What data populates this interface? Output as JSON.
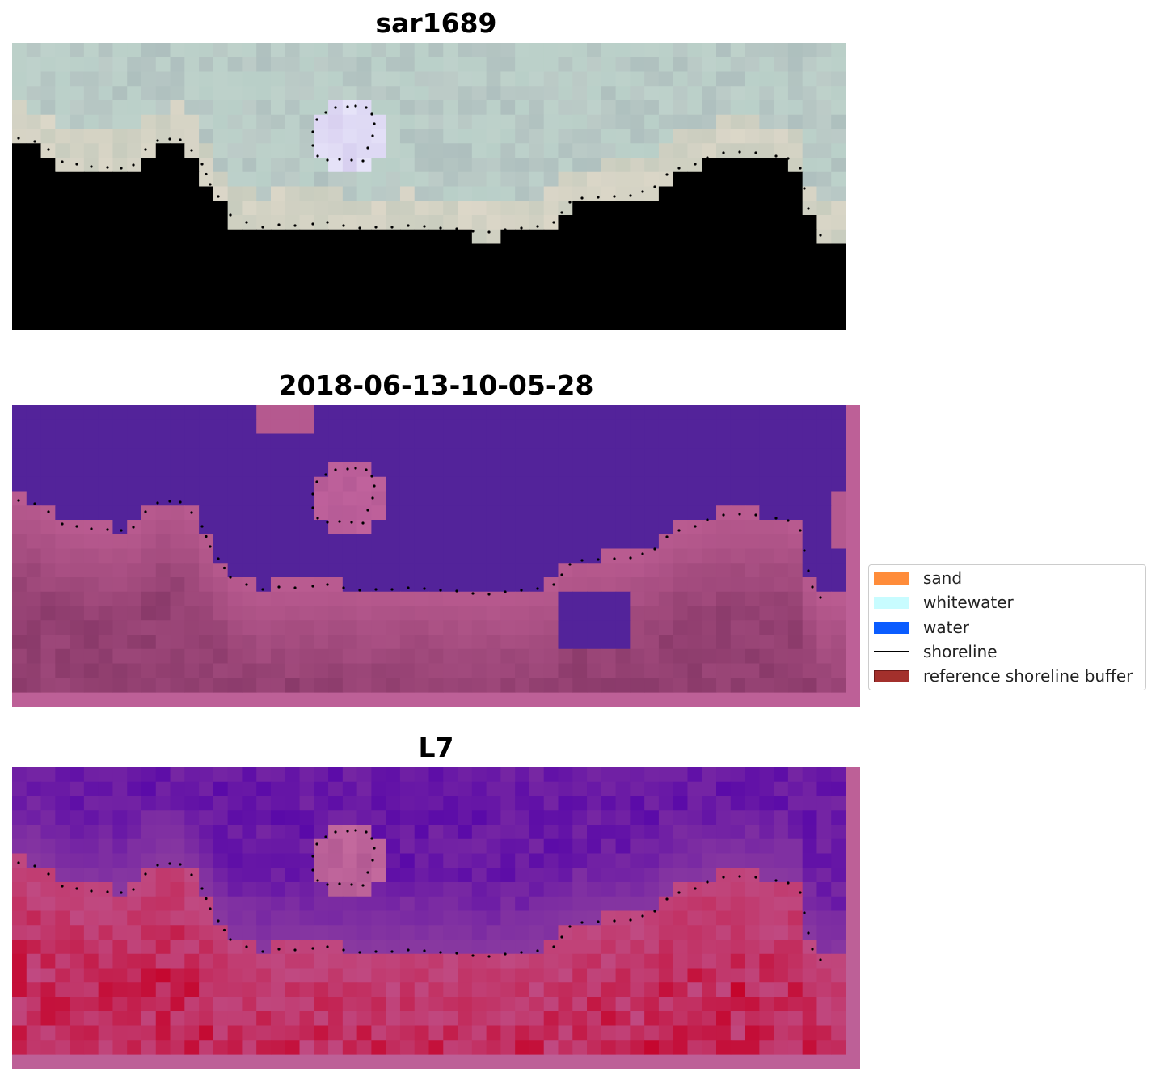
{
  "panels": [
    {
      "title": "sar1689",
      "kind": "rgb"
    },
    {
      "title": "2018-06-13-10-05-28",
      "kind": "classified"
    },
    {
      "title": "L7",
      "kind": "index"
    }
  ],
  "legend": {
    "items": [
      {
        "label": "sand",
        "type": "patch",
        "color": "#ff8c3a",
        "edge": "#ff8c3a"
      },
      {
        "label": "whitewater",
        "type": "patch",
        "color": "#c8fcff",
        "edge": "#c8fcff"
      },
      {
        "label": "water",
        "type": "patch",
        "color": "#0a5cff",
        "edge": "#0a5cff"
      },
      {
        "label": "shoreline",
        "type": "line",
        "color": "#000000"
      },
      {
        "label": "reference shoreline buffer",
        "type": "patch",
        "color": "#a3302c",
        "edge": "#6e1a18"
      }
    ]
  },
  "colors": {
    "water_class": "#53239a",
    "land_class": "#b85a8f",
    "buffer_frame": "#bd6097",
    "index_high": "#5a0aa8",
    "index_low": "#c4103a",
    "shoreline_dots": "#000000"
  }
}
